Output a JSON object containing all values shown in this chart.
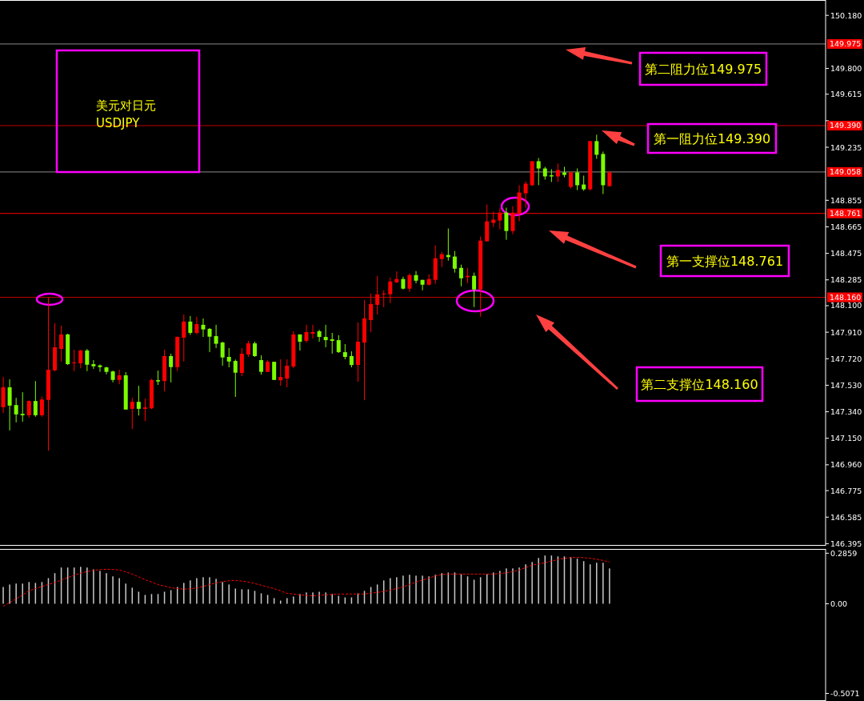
{
  "chart_data": [
    {
      "type": "candlestick",
      "title": "美元对日元",
      "subtitle": "USDJPY",
      "tick_labels": "y",
      "categories": [
        null,
        null,
        null,
        null,
        null,
        null,
        null,
        null,
        null,
        null,
        null,
        null,
        null,
        null,
        null,
        null,
        null,
        null,
        null,
        null,
        null,
        null,
        null,
        null,
        null,
        null,
        null,
        null,
        null,
        null,
        null,
        null,
        null,
        null,
        null,
        null,
        null,
        null,
        null,
        null,
        null,
        null,
        null,
        null,
        null,
        null,
        null,
        null,
        null,
        null,
        null,
        null,
        null,
        null,
        null,
        null,
        null,
        null,
        null,
        null,
        null,
        null,
        null,
        null,
        null,
        null,
        null,
        null,
        null,
        null,
        null,
        null,
        null,
        null,
        null,
        null,
        null,
        null,
        null,
        null,
        null,
        null,
        null,
        null,
        null,
        null,
        null,
        null,
        null,
        null,
        null,
        null,
        null,
        null,
        null,
        null,
        null,
        null,
        null,
        null,
        null,
        null,
        null,
        null,
        null,
        null,
        null,
        null,
        null,
        null,
        null,
        null,
        null,
        null,
        null,
        null,
        null,
        null,
        null,
        null,
        null,
        null,
        null,
        null,
        null,
        null,
        null,
        null
      ],
      "ohlc": [
        [
          147.373,
          147.589,
          147.331,
          147.515
        ],
        [
          147.515,
          147.572,
          147.206,
          147.384
        ],
        [
          147.388,
          147.44,
          147.264,
          147.321
        ],
        [
          147.325,
          147.48,
          147.269,
          147.315
        ],
        [
          147.315,
          147.421,
          147.298,
          147.417
        ],
        [
          147.417,
          147.56,
          147.304,
          147.315
        ],
        [
          147.315,
          147.449,
          147.304,
          147.428
        ],
        [
          147.425,
          148.158,
          147.061,
          147.641
        ],
        [
          147.637,
          147.974,
          147.629,
          147.802
        ],
        [
          147.79,
          147.957,
          147.7,
          147.894
        ],
        [
          147.894,
          147.899,
          147.675,
          147.681
        ],
        [
          147.689,
          147.784,
          147.631,
          147.693
        ],
        [
          147.687,
          147.784,
          147.652,
          147.779
        ],
        [
          147.779,
          147.79,
          147.631,
          147.677
        ],
        [
          147.681,
          147.71,
          147.647,
          147.666
        ],
        [
          147.672,
          147.679,
          147.626,
          147.66
        ],
        [
          147.658,
          147.662,
          147.608,
          147.626
        ],
        [
          147.629,
          147.635,
          147.551,
          147.568
        ],
        [
          147.568,
          147.641,
          147.537,
          147.601
        ],
        [
          147.601,
          147.624,
          147.356,
          147.356
        ],
        [
          147.361,
          147.44,
          147.216,
          147.411
        ],
        [
          147.411,
          147.526,
          147.313,
          147.361
        ],
        [
          147.361,
          147.434,
          147.273,
          147.371
        ],
        [
          147.365,
          147.576,
          147.359,
          147.568
        ],
        [
          147.566,
          147.635,
          147.532,
          147.557
        ],
        [
          147.56,
          147.784,
          147.486,
          147.739
        ],
        [
          147.739,
          147.756,
          147.551,
          147.66
        ],
        [
          147.66,
          147.88,
          147.631,
          147.876
        ],
        [
          147.871,
          148.037,
          147.7,
          147.986
        ],
        [
          147.986,
          148.026,
          147.89,
          147.905
        ],
        [
          147.905,
          148.02,
          147.894,
          147.968
        ],
        [
          147.963,
          148.009,
          147.876,
          147.93
        ],
        [
          147.934,
          147.94,
          147.767,
          147.878
        ],
        [
          147.882,
          147.963,
          147.796,
          147.827
        ],
        [
          147.836,
          147.842,
          147.67,
          147.729
        ],
        [
          147.733,
          147.796,
          147.658,
          147.7
        ],
        [
          147.704,
          147.714,
          147.446,
          147.62
        ],
        [
          147.618,
          147.796,
          147.595,
          147.756
        ],
        [
          147.75,
          147.848,
          147.733,
          147.83
        ],
        [
          147.83,
          147.842,
          147.733,
          147.739
        ],
        [
          147.71,
          147.744,
          147.606,
          147.626
        ],
        [
          147.626,
          147.71,
          147.624,
          147.698
        ],
        [
          147.698,
          147.698,
          147.568,
          147.568
        ],
        [
          147.566,
          147.716,
          147.526,
          147.589
        ],
        [
          147.578,
          147.716,
          147.515,
          147.67
        ],
        [
          147.664,
          147.917,
          147.652,
          147.894
        ],
        [
          147.894,
          147.894,
          147.779,
          147.842
        ],
        [
          147.848,
          147.963,
          147.836,
          147.911
        ],
        [
          147.899,
          147.963,
          147.865,
          147.911
        ],
        [
          147.917,
          147.928,
          147.842,
          147.876
        ],
        [
          147.876,
          147.963,
          147.802,
          147.853
        ],
        [
          147.859,
          147.905,
          147.756,
          147.848
        ],
        [
          147.853,
          147.888,
          147.762,
          147.767
        ],
        [
          147.767,
          147.825,
          147.716,
          147.733
        ],
        [
          147.739,
          147.773,
          147.658,
          147.675
        ],
        [
          147.675,
          147.98,
          147.555,
          147.842
        ],
        [
          147.836,
          148.141,
          147.423,
          148.009
        ],
        [
          147.997,
          148.187,
          147.911,
          148.112
        ],
        [
          148.106,
          148.313,
          148.037,
          148.181
        ],
        [
          148.181,
          148.21,
          148.089,
          148.187
        ],
        [
          148.182,
          148.302,
          148.118,
          148.273
        ],
        [
          148.268,
          148.346,
          148.262,
          148.291
        ],
        [
          148.291,
          148.308,
          148.216,
          148.222
        ],
        [
          148.222,
          148.331,
          148.199,
          148.319
        ],
        [
          148.319,
          148.348,
          148.26,
          148.279
        ],
        [
          148.285,
          148.285,
          148.21,
          148.25
        ],
        [
          148.25,
          148.325,
          148.245,
          148.291
        ],
        [
          148.285,
          148.532,
          148.256,
          148.44
        ],
        [
          148.434,
          148.486,
          148.377,
          148.469
        ],
        [
          148.463,
          148.653,
          148.423,
          148.448
        ],
        [
          148.452,
          148.492,
          148.337,
          148.365
        ],
        [
          148.371,
          148.394,
          148.239,
          148.296
        ],
        [
          148.304,
          148.371,
          148.262,
          148.314
        ],
        [
          148.314,
          148.337,
          148.09,
          148.216
        ],
        [
          148.216,
          148.595,
          148.021,
          148.566
        ],
        [
          148.561,
          148.825,
          148.561,
          148.704
        ],
        [
          148.693,
          148.773,
          148.664,
          148.716
        ],
        [
          148.71,
          148.796,
          148.647,
          148.767
        ],
        [
          148.767,
          148.802,
          148.572,
          148.635
        ],
        [
          148.635,
          148.813,
          148.612,
          148.767
        ],
        [
          148.762,
          148.963,
          148.704,
          148.911
        ],
        [
          148.905,
          148.991,
          148.802,
          148.974
        ],
        [
          148.963,
          149.135,
          148.957,
          149.135
        ],
        [
          149.135,
          149.158,
          148.963,
          149.083
        ],
        [
          149.083,
          149.095,
          149.003,
          149.026
        ],
        [
          149.034,
          149.078,
          148.986,
          149.026
        ],
        [
          149.026,
          149.118,
          148.986,
          149.072
        ],
        [
          149.055,
          149.095,
          149.02,
          149.037
        ],
        [
          148.951,
          149.06,
          148.94,
          149.055
        ],
        [
          149.055,
          149.083,
          148.928,
          148.963
        ],
        [
          148.968,
          149.032,
          148.923,
          148.934
        ],
        [
          148.934,
          149.279,
          148.923,
          149.279
        ],
        [
          149.279,
          149.325,
          149.152,
          149.181
        ],
        [
          149.187,
          149.204,
          148.9,
          148.963
        ],
        [
          148.957,
          149.066,
          148.951,
          149.055
        ],
        null,
        null,
        null,
        null,
        null,
        null,
        null,
        null,
        null,
        null,
        null,
        null,
        null,
        null,
        null,
        null,
        null,
        null,
        null,
        null,
        null,
        null,
        null,
        null,
        null,
        null,
        null,
        null,
        null,
        null,
        null,
        null,
        null
      ],
      "colors": [
        "#ff0000",
        "#7cfc00",
        "#7cfc00",
        "#7cfc00",
        "#ff0000",
        "#7cfc00",
        "#ff0000",
        "#ff0000",
        "#ff0000",
        "#ff0000",
        "#7cfc00",
        "#ff0000",
        "#ff0000",
        "#7cfc00",
        "#7cfc00",
        "#7cfc00",
        "#7cfc00",
        "#7cfc00",
        "#ff0000",
        "#7cfc00",
        "#ff0000",
        "#7cfc00",
        "#ff0000",
        "#ff0000",
        "#7cfc00",
        "#ff0000",
        "#7cfc00",
        "#ff0000",
        "#ff0000",
        "#7cfc00",
        "#ff0000",
        "#7cfc00",
        "#7cfc00",
        "#7cfc00",
        "#7cfc00",
        "#7cfc00",
        "#7cfc00",
        "#ff0000",
        "#ff0000",
        "#7cfc00",
        "#7cfc00",
        "#ff0000",
        "#7cfc00",
        "#ff0000",
        "#ff0000",
        "#ff0000",
        "#7cfc00",
        "#ff0000",
        "#ff0000",
        "#7cfc00",
        "#7cfc00",
        "#7cfc00",
        "#7cfc00",
        "#7cfc00",
        "#7cfc00",
        "#ff0000",
        "#ff0000",
        "#ff0000",
        "#ff0000",
        "#ff0000",
        "#ff0000",
        "#ff0000",
        "#7cfc00",
        "#ff0000",
        "#7cfc00",
        "#7cfc00",
        "#ff0000",
        "#ff0000",
        "#ff0000",
        "#7cfc00",
        "#7cfc00",
        "#7cfc00",
        "#ff0000",
        "#7cfc00",
        "#ff0000",
        "#ff0000",
        "#ff0000",
        "#ff0000",
        "#7cfc00",
        "#ff0000",
        "#ff0000",
        "#ff0000",
        "#ff0000",
        "#7cfc00",
        "#7cfc00",
        "#7cfc00",
        "#ff0000",
        "#7cfc00",
        "#ff0000",
        "#7cfc00",
        "#7cfc00",
        "#ff0000",
        "#7cfc00",
        "#7cfc00",
        "#ff0000",
        null,
        null,
        null,
        null,
        null,
        null,
        null,
        null,
        null,
        null,
        null,
        null,
        null,
        null,
        null,
        null,
        null,
        null,
        null,
        null,
        null,
        null,
        null,
        null,
        null,
        null,
        null,
        null,
        null,
        null,
        null,
        null,
        null
      ],
      "ylim": [
        146.38,
        150.29
      ],
      "yticks": [
        {
          "value": 150.18,
          "label": "150.180"
        },
        {
          "value": 149.8,
          "label": "149.800"
        },
        {
          "value": 149.615,
          "label": "149.615"
        },
        {
          "value": 149.425,
          "label": null
        },
        {
          "value": 149.235,
          "label": "149.235"
        },
        {
          "value": 148.855,
          "label": "148.855"
        },
        {
          "value": 148.665,
          "label": "148.665"
        },
        {
          "value": 148.475,
          "label": "148.475"
        },
        {
          "value": 148.285,
          "label": "148.285"
        },
        {
          "value": 148.1,
          "label": "148.100"
        },
        {
          "value": 147.91,
          "label": "147.910"
        },
        {
          "value": 147.72,
          "label": "147.720"
        },
        {
          "value": 147.53,
          "label": "147.530"
        },
        {
          "value": 147.34,
          "label": "147.340"
        },
        {
          "value": 147.15,
          "label": "147.150"
        },
        {
          "value": 146.96,
          "label": "146.960"
        },
        {
          "value": 146.775,
          "label": "146.775"
        },
        {
          "value": 146.585,
          "label": "146.585"
        },
        {
          "value": 146.395,
          "label": "146.395"
        }
      ],
      "ref_lines": [
        {
          "axis": "y",
          "value": 149.975,
          "label": "149.975",
          "color": "#8c8c8c"
        },
        {
          "axis": "y",
          "value": 149.39,
          "label": "149.390",
          "color": "#c00000"
        },
        {
          "axis": "y",
          "value": 149.058,
          "label": "149.058",
          "color": "#8c8c8c"
        },
        {
          "axis": "y",
          "value": 148.761,
          "label": "148.761",
          "color": "#ff0000"
        },
        {
          "axis": "y",
          "value": 148.16,
          "label": "148.160",
          "color": "#c00000"
        }
      ],
      "annotations": [
        "第二阻力位149.975",
        "第一阻力位149.390",
        "第一支撑位148.761",
        "第二支撑位148.160"
      ]
    },
    {
      "type": "bar",
      "tick_labels": "y",
      "categories": [
        null,
        null,
        null,
        null,
        null,
        null,
        null,
        null,
        null,
        null,
        null,
        null,
        null,
        null,
        null,
        null,
        null,
        null,
        null,
        null,
        null,
        null,
        null,
        null,
        null,
        null,
        null,
        null,
        null,
        null,
        null,
        null,
        null,
        null,
        null,
        null,
        null,
        null,
        null,
        null,
        null,
        null,
        null,
        null,
        null,
        null,
        null,
        null,
        null,
        null,
        null,
        null,
        null,
        null,
        null,
        null,
        null,
        null,
        null,
        null,
        null,
        null,
        null,
        null,
        null,
        null,
        null,
        null,
        null,
        null,
        null,
        null,
        null,
        null,
        null,
        null,
        null,
        null,
        null,
        null,
        null,
        null,
        null,
        null,
        null,
        null,
        null,
        null,
        null,
        null,
        null,
        null,
        null,
        null,
        null,
        null,
        null,
        null,
        null,
        null,
        null,
        null,
        null,
        null,
        null,
        null,
        null,
        null,
        null,
        null,
        null,
        null,
        null,
        null,
        null,
        null,
        null,
        null,
        null,
        null,
        null,
        null,
        null,
        null,
        null,
        null,
        null,
        null
      ],
      "ylim": [
        -0.55,
        0.31
      ],
      "yticks": [
        {
          "value": 0.2859,
          "label": "0.2859"
        },
        {
          "value": 0,
          "label": "0.00"
        },
        {
          "value": -0.5071,
          "label": "-0.5071"
        }
      ],
      "series": [
        {
          "type": "bar",
          "color": "#c8c8c8",
          "values": [
            0.095,
            0.109,
            0.114,
            0.114,
            0.123,
            0.118,
            0.123,
            0.145,
            0.173,
            0.205,
            0.205,
            0.205,
            0.209,
            0.205,
            0.195,
            0.186,
            0.173,
            0.155,
            0.145,
            0.114,
            0.091,
            0.068,
            0.05,
            0.055,
            0.055,
            0.068,
            0.077,
            0.095,
            0.118,
            0.132,
            0.145,
            0.15,
            0.15,
            0.141,
            0.123,
            0.109,
            0.086,
            0.082,
            0.082,
            0.073,
            0.059,
            0.05,
            0.032,
            0.018,
            0.032,
            0.041,
            0.055,
            0.064,
            0.064,
            0.068,
            0.064,
            0.055,
            0.045,
            0.036,
            0.036,
            0.059,
            0.073,
            0.095,
            0.109,
            0.132,
            0.145,
            0.15,
            0.159,
            0.164,
            0.159,
            0.159,
            0.155,
            0.164,
            0.173,
            0.177,
            0.177,
            0.168,
            0.155,
            0.136,
            0.15,
            0.168,
            0.177,
            0.186,
            0.2,
            0.2,
            0.205,
            0.223,
            0.236,
            0.259,
            0.273,
            0.273,
            0.268,
            0.268,
            0.264,
            0.255,
            0.241,
            0.223,
            0.232,
            0.232,
            0.2,
            null,
            null,
            null,
            null,
            null,
            null,
            null,
            null,
            null,
            null,
            null,
            null,
            null,
            null,
            null,
            null,
            null,
            null,
            null,
            null,
            null,
            null,
            null,
            null,
            null,
            null,
            null,
            null,
            null,
            null,
            null,
            null,
            null
          ]
        },
        {
          "type": "line",
          "color": "#ff0000",
          "line_style": "dashed",
          "values": [
            -0.014,
            0.006,
            0.027,
            0.05,
            0.073,
            0.086,
            0.098,
            0.109,
            0.12,
            0.134,
            0.148,
            0.161,
            0.173,
            0.182,
            0.189,
            0.193,
            0.195,
            0.194,
            0.191,
            0.18,
            0.168,
            0.152,
            0.136,
            0.123,
            0.109,
            0.1,
            0.091,
            0.086,
            0.082,
            0.085,
            0.089,
            0.098,
            0.109,
            0.118,
            0.125,
            0.13,
            0.132,
            0.128,
            0.123,
            0.114,
            0.105,
            0.095,
            0.086,
            0.073,
            0.059,
            0.055,
            0.05,
            0.048,
            0.045,
            0.048,
            0.05,
            0.052,
            0.055,
            0.055,
            0.055,
            0.055,
            0.055,
            0.06,
            0.064,
            0.07,
            0.077,
            0.086,
            0.095,
            0.109,
            0.123,
            0.134,
            0.145,
            0.157,
            0.166,
            0.168,
            0.168,
            0.168,
            0.168,
            0.168,
            0.168,
            0.168,
            0.168,
            0.171,
            0.175,
            0.182,
            0.191,
            0.205,
            0.218,
            0.225,
            0.232,
            0.241,
            0.25,
            0.257,
            0.261,
            0.262,
            0.261,
            0.257,
            0.252,
            0.245,
            0.236,
            null,
            null,
            null,
            null,
            null,
            null,
            null,
            null,
            null,
            null,
            null,
            null,
            null,
            null,
            null,
            null,
            null,
            null,
            null,
            null,
            null,
            null,
            null,
            null,
            null,
            null,
            null,
            null,
            null,
            null,
            null,
            null,
            null
          ]
        }
      ]
    }
  ]
}
